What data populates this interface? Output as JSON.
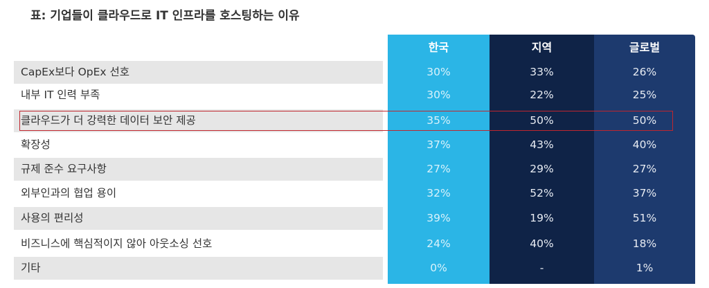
{
  "title": "표: 기업들이 클라우드로  IT 인프라를 호스팅하는 이유",
  "columns": [
    "한국",
    "지역",
    "글로벌"
  ],
  "rows": [
    {
      "label": "CapEx보다 OpEx 선호",
      "values": [
        "30%",
        "33%",
        "26%"
      ]
    },
    {
      "label": "내부 IT 인력 부족",
      "values": [
        "30%",
        "22%",
        "25%"
      ]
    },
    {
      "label": "클라우드가 더 강력한 데이터 보안 제공",
      "values": [
        "35%",
        "50%",
        "50%"
      ]
    },
    {
      "label": "확장성",
      "values": [
        "37%",
        "43%",
        "40%"
      ]
    },
    {
      "label": "규제 준수 요구사항",
      "values": [
        "27%",
        "29%",
        "27%"
      ]
    },
    {
      "label": "외부인과의 협업 용이",
      "values": [
        "32%",
        "52%",
        "37%"
      ]
    },
    {
      "label": "사용의 편리성",
      "values": [
        "39%",
        "19%",
        "51%"
      ]
    },
    {
      "label": "비즈니스에 핵심적이지 않아 아웃소싱 선호",
      "values": [
        "24%",
        "40%",
        "18%"
      ]
    },
    {
      "label": "기타",
      "values": [
        "0%",
        "-",
        "1%"
      ]
    }
  ],
  "colors": {
    "korea": "#2bb5e6",
    "region": "#0f2347",
    "global": "#1d3a6e",
    "highlight": "#c0262e",
    "stripe": "#e6e6e6"
  },
  "highlighted_row": "클라우드가 더 강력한 데이터 보안 제공"
}
